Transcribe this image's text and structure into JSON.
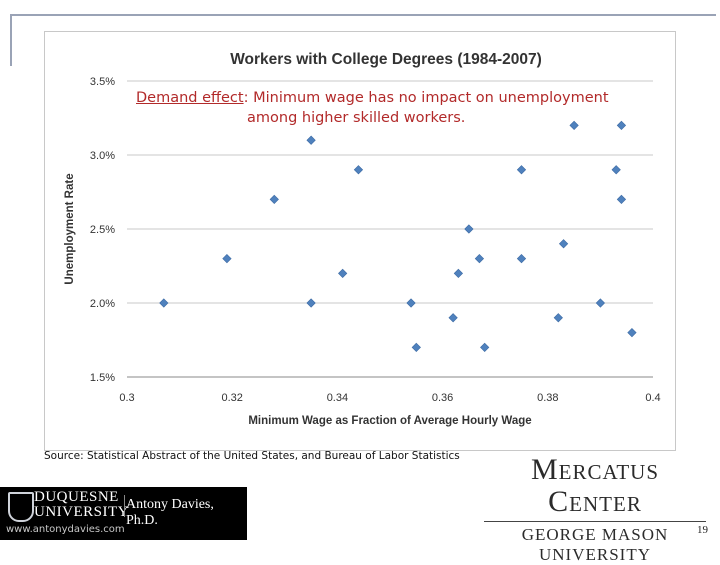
{
  "chart_data": {
    "type": "scatter",
    "title": "Workers with College Degrees (1984-2007)",
    "xlabel": "Minimum Wage as Fraction of Average Hourly Wage",
    "ylabel": "Unemployment Rate",
    "xlim": [
      0.3,
      0.4
    ],
    "ylim": [
      1.5,
      3.5
    ],
    "x_ticks": [
      "0.3",
      "0.32",
      "0.34",
      "0.36",
      "0.38",
      "0.4"
    ],
    "y_ticks": [
      "1.5%",
      "2.0%",
      "2.5%",
      "3.0%",
      "3.5%"
    ],
    "grid": "horizontal",
    "marker_color": "#4f81bd",
    "points": [
      {
        "x": 0.307,
        "y": 2.0
      },
      {
        "x": 0.319,
        "y": 2.3
      },
      {
        "x": 0.328,
        "y": 2.7
      },
      {
        "x": 0.335,
        "y": 3.1
      },
      {
        "x": 0.335,
        "y": 2.0
      },
      {
        "x": 0.341,
        "y": 2.2
      },
      {
        "x": 0.344,
        "y": 2.9
      },
      {
        "x": 0.354,
        "y": 2.0
      },
      {
        "x": 0.355,
        "y": 1.7
      },
      {
        "x": 0.362,
        "y": 1.9
      },
      {
        "x": 0.363,
        "y": 2.2
      },
      {
        "x": 0.365,
        "y": 2.5
      },
      {
        "x": 0.367,
        "y": 2.3
      },
      {
        "x": 0.368,
        "y": 1.7
      },
      {
        "x": 0.375,
        "y": 2.9
      },
      {
        "x": 0.375,
        "y": 2.3
      },
      {
        "x": 0.382,
        "y": 1.9
      },
      {
        "x": 0.383,
        "y": 2.4
      },
      {
        "x": 0.385,
        "y": 3.2
      },
      {
        "x": 0.39,
        "y": 2.0
      },
      {
        "x": 0.393,
        "y": 2.9
      },
      {
        "x": 0.394,
        "y": 3.2
      },
      {
        "x": 0.394,
        "y": 2.7
      },
      {
        "x": 0.396,
        "y": 1.8
      }
    ]
  },
  "annotation": {
    "label": "Demand effect",
    "separator": ":",
    "line1": "Minimum wage has no impact on  unemployment",
    "line2": "among higher skilled workers."
  },
  "source": "Source: Statistical Abstract of the United States, and Bureau of Labor Statistics",
  "mercatus": {
    "title": "Mercatus Center",
    "subtitle": "GEORGE MASON UNIVERSITY"
  },
  "footer": {
    "university_line1": "DUQUESNE",
    "university_line2": "UNIVERSITY",
    "author": "Antony Davies, Ph.D.",
    "website": "www.antonydavies.com"
  },
  "page_number": "19"
}
